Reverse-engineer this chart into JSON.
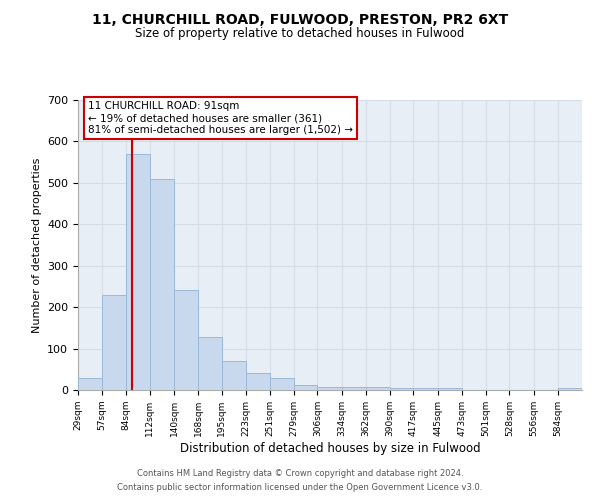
{
  "title": "11, CHURCHILL ROAD, FULWOOD, PRESTON, PR2 6XT",
  "subtitle": "Size of property relative to detached houses in Fulwood",
  "xlabel": "Distribution of detached houses by size in Fulwood",
  "ylabel": "Number of detached properties",
  "bin_labels": [
    "29sqm",
    "57sqm",
    "84sqm",
    "112sqm",
    "140sqm",
    "168sqm",
    "195sqm",
    "223sqm",
    "251sqm",
    "279sqm",
    "306sqm",
    "334sqm",
    "362sqm",
    "390sqm",
    "417sqm",
    "445sqm",
    "473sqm",
    "501sqm",
    "528sqm",
    "556sqm",
    "584sqm"
  ],
  "bar_values": [
    28,
    230,
    570,
    510,
    242,
    128,
    70,
    42,
    28,
    12,
    8,
    8,
    8,
    5,
    5,
    5,
    0,
    0,
    0,
    0,
    5
  ],
  "bar_color": "#c8d9ee",
  "bar_edge_color": "#9ab8d8",
  "grid_color": "#d4dce8",
  "ref_line_x": 91,
  "ref_line_color": "#cc0000",
  "annotation_title": "11 CHURCHILL ROAD: 91sqm",
  "annotation_line1": "← 19% of detached houses are smaller (361)",
  "annotation_line2": "81% of semi-detached houses are larger (1,502) →",
  "annotation_box_color": "#ffffff",
  "annotation_box_edge": "#cc0000",
  "ylim": [
    0,
    700
  ],
  "yticks": [
    0,
    100,
    200,
    300,
    400,
    500,
    600,
    700
  ],
  "bin_edges": [
    29,
    57,
    84,
    112,
    140,
    168,
    195,
    223,
    251,
    279,
    306,
    334,
    362,
    390,
    417,
    445,
    473,
    501,
    528,
    556,
    584,
    612
  ],
  "bg_color": "#e8eef5",
  "footer_line1": "Contains HM Land Registry data © Crown copyright and database right 2024.",
  "footer_line2": "Contains public sector information licensed under the Open Government Licence v3.0."
}
